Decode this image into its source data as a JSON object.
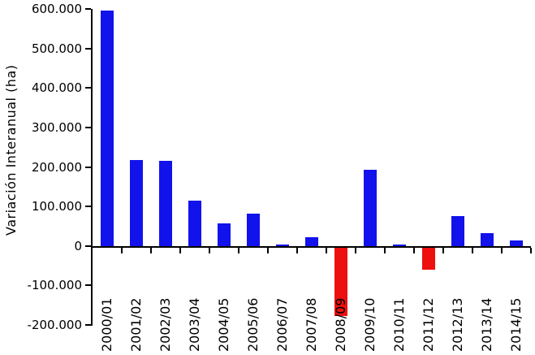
{
  "chart_data": {
    "type": "bar",
    "ylabel": "Variación Interanual (ha)",
    "xlabel": "",
    "categories": [
      "2000/01",
      "2001/02",
      "2002/03",
      "2003/04",
      "2004/05",
      "2005/06",
      "2006/07",
      "2007/08",
      "2008/09",
      "2009/10",
      "2010/11",
      "2011/12",
      "2012/13",
      "2013/14",
      "2014/15"
    ],
    "values": [
      595000,
      218000,
      215000,
      115000,
      58000,
      81000,
      4000,
      23000,
      -178000,
      192000,
      4000,
      -60000,
      75000,
      33000,
      13000
    ],
    "ylim": [
      -200000,
      600000
    ],
    "ytick_step": 100000,
    "yticks": [
      {
        "value": 600000,
        "label": "600.000"
      },
      {
        "value": 500000,
        "label": "500.000"
      },
      {
        "value": 400000,
        "label": "400.000"
      },
      {
        "value": 300000,
        "label": "300.000"
      },
      {
        "value": 200000,
        "label": "200.000"
      },
      {
        "value": 100000,
        "label": "100.000"
      },
      {
        "value": 0,
        "label": "0"
      },
      {
        "value": -100000,
        "label": "-100.000"
      },
      {
        "value": -200000,
        "label": "-200.000"
      }
    ],
    "colors": {
      "positive_bar": "#1212ec",
      "negative_bar": "#ee0f0f",
      "axis": "#000000",
      "text": "#000000",
      "background": "#ffffff"
    },
    "grid": false,
    "legend_position": "none"
  }
}
